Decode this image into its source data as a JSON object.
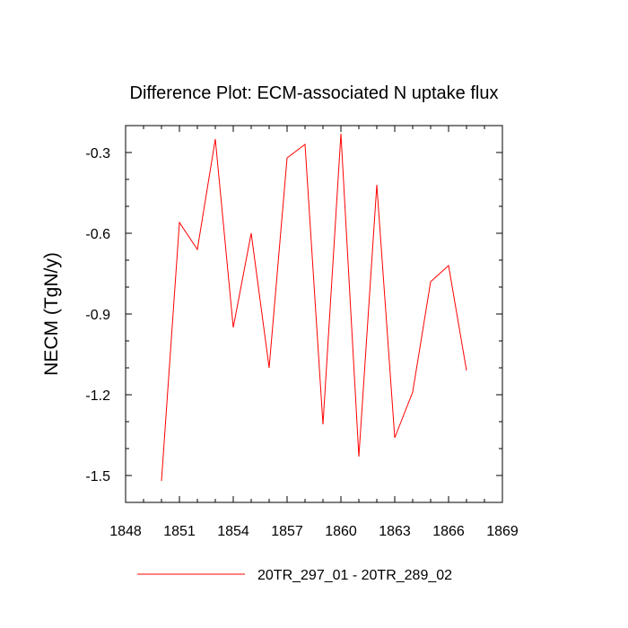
{
  "chart_data": {
    "type": "line",
    "title": "Difference Plot: ECM-associated N uptake flux",
    "xlabel": "",
    "ylabel": "NECM  (TgN/y)",
    "xlim": [
      1848,
      1869
    ],
    "ylim": [
      -1.6,
      -0.2
    ],
    "x_ticks": [
      1848,
      1851,
      1854,
      1857,
      1860,
      1863,
      1866,
      1869
    ],
    "y_ticks": [
      -1.5,
      -1.2,
      -0.9,
      -0.6,
      -0.3
    ],
    "x_tick_labels": [
      "1848",
      "1851",
      "1854",
      "1857",
      "1860",
      "1863",
      "1866",
      "1869"
    ],
    "y_tick_labels": [
      "-1.5",
      "-1.2",
      "-0.9",
      "-0.6",
      "-0.3"
    ],
    "x": [
      1850,
      1851,
      1852,
      1853,
      1854,
      1855,
      1856,
      1857,
      1858,
      1859,
      1860,
      1861,
      1862,
      1863,
      1864,
      1865,
      1866,
      1867
    ],
    "series": [
      {
        "name": "20TR_297_01 - 20TR_289_02",
        "color": "#ff0000",
        "values": [
          -1.52,
          -0.56,
          -0.66,
          -0.25,
          -0.95,
          -0.6,
          -1.1,
          -0.32,
          -0.27,
          -1.31,
          -0.23,
          -1.43,
          -0.42,
          -1.36,
          -1.19,
          -0.78,
          -0.72,
          -1.11
        ]
      }
    ],
    "grid": false,
    "legend_position": "bottom"
  }
}
